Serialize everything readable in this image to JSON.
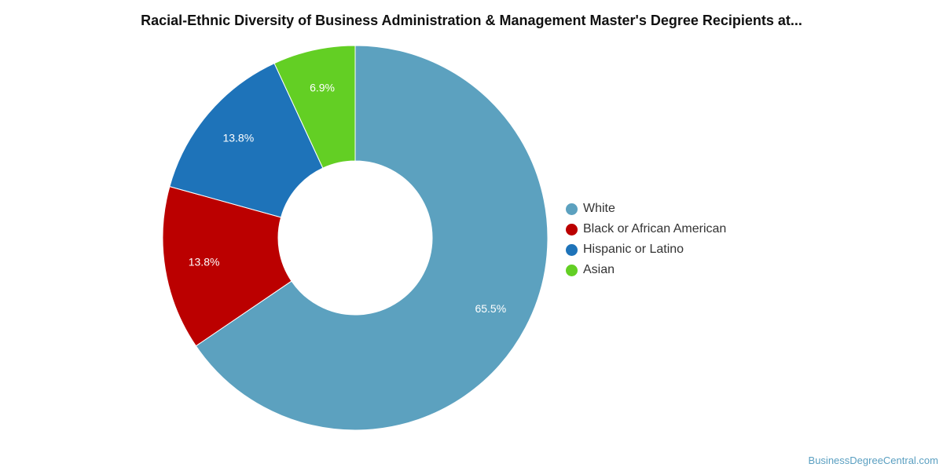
{
  "chart_data": {
    "type": "pie",
    "title": "Racial-Ethnic Diversity of Business Administration & Management Master's Degree Recipients at...",
    "donut": true,
    "categories": [
      "White",
      "Black or African American",
      "Hispanic or Latino",
      "Asian"
    ],
    "values": [
      65.5,
      13.8,
      13.8,
      6.9
    ],
    "data_labels": [
      "65.5%",
      "13.8%",
      "13.8%",
      "6.9%"
    ],
    "colors": [
      "#5ca1bf",
      "#bb0000",
      "#1e73b9",
      "#63cf24"
    ],
    "legend_position": "right"
  },
  "watermark": "BusinessDegreeCentral.com"
}
